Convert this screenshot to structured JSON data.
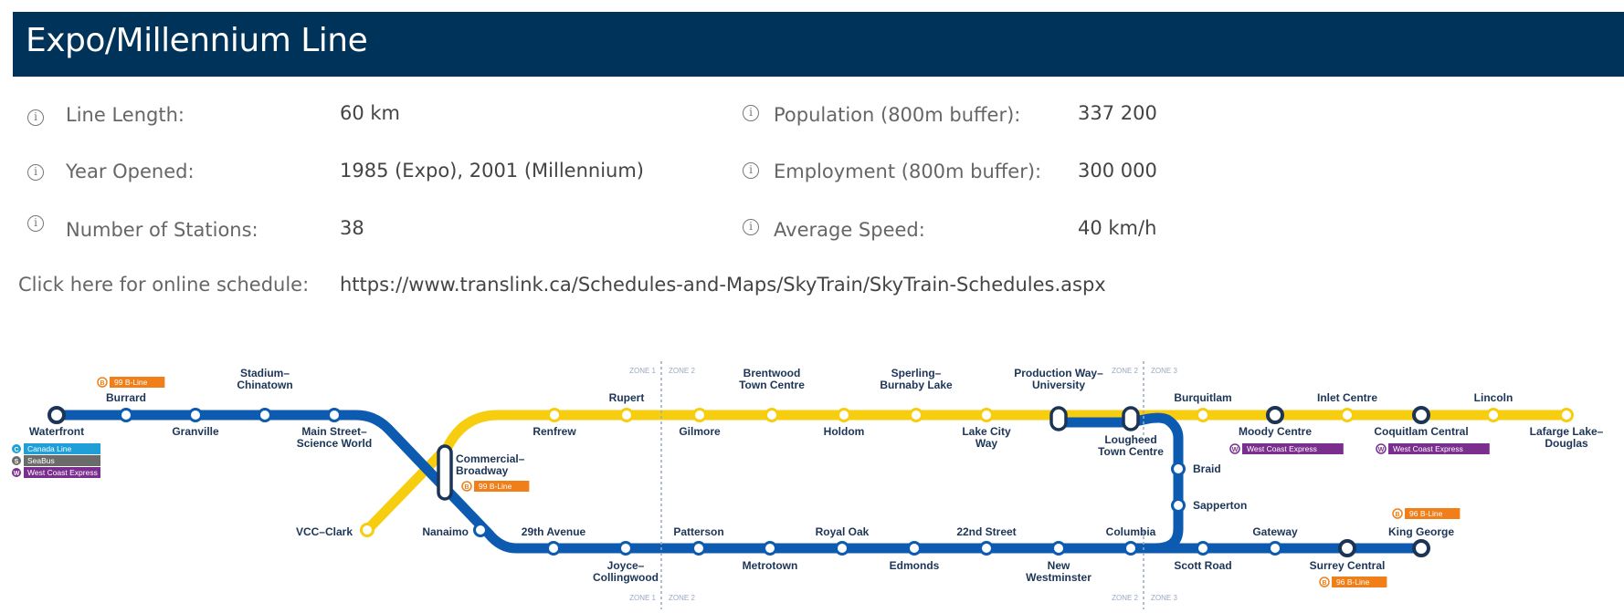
{
  "header": {
    "title": "Expo/Millennium Line"
  },
  "info": {
    "line_length": {
      "label": "Line Length:",
      "value": "60 km"
    },
    "year_opened": {
      "label": "Year Opened:",
      "value": "1985 (Expo), 2001 (Millennium)"
    },
    "num_stations": {
      "label": "Number of Stations:",
      "value": "38"
    },
    "population": {
      "label": "Population (800m buffer):",
      "value": "337 200"
    },
    "employment": {
      "label": "Employment (800m buffer):",
      "value": "300 000"
    },
    "avg_speed": {
      "label": "Average Speed:",
      "value": "40 km/h"
    }
  },
  "schedule": {
    "label": "Click here for online schedule:",
    "url": "https://www.translink.ca/Schedules-and-Maps/SkyTrain/SkyTrain-Schedules.aspx"
  },
  "map": {
    "colors": {
      "expo": "#0c5bb0",
      "millennium": "#f7cd0f",
      "bline": "#f07f1a",
      "wce": "#7a2e8e",
      "canada": "#1f9fd8",
      "seabus": "#6b6b6b",
      "zone": "#9aa9c4"
    },
    "stations": {
      "waterfront": "Waterfront",
      "burrard": "Burrard",
      "granville": "Granville",
      "stadium": "Stadium–\nChinatown",
      "main_street": "Main Street–\nScience World",
      "commercial": "Commercial–\nBroadway",
      "vcc_clark": "VCC–Clark",
      "nanaimo": "Nanaimo",
      "29th_avenue": "29th Avenue",
      "joyce": "Joyce–\nCollingwood",
      "patterson": "Patterson",
      "metrotown": "Metrotown",
      "royal_oak": "Royal Oak",
      "edmonds": "Edmonds",
      "22nd_street": "22nd Street",
      "new_westminster": "New\nWestminster",
      "columbia": "Columbia",
      "sapperton": "Sapperton",
      "braid": "Braid",
      "scott_road": "Scott Road",
      "gateway": "Gateway",
      "surrey_central": "Surrey Central",
      "king_george": "King George",
      "renfrew": "Renfrew",
      "rupert": "Rupert",
      "gilmore": "Gilmore",
      "brentwood": "Brentwood\nTown Centre",
      "holdom": "Holdom",
      "sperling": "Sperling–\nBurnaby Lake",
      "lake_city": "Lake City\nWay",
      "production_way": "Production Way–\nUniversity",
      "lougheed": "Lougheed\nTown Centre",
      "burquitlam": "Burquitlam",
      "moody_centre": "Moody Centre",
      "inlet_centre": "Inlet Centre",
      "coquitlam_central": "Coquitlam Central",
      "lincoln": "Lincoln",
      "lafarge": "Lafarge Lake–\nDouglas"
    },
    "badges": {
      "bline": "99 B-Line",
      "bline_96": "96 B-Line",
      "wce": "West Coast Express"
    },
    "legend": {
      "canada_line": "Canada Line",
      "seabus": "SeaBus",
      "wce": "West Coast Express"
    },
    "zones": {
      "z1": "ZONE 1",
      "z2": "ZONE 2",
      "z3": "ZONE 3"
    }
  }
}
